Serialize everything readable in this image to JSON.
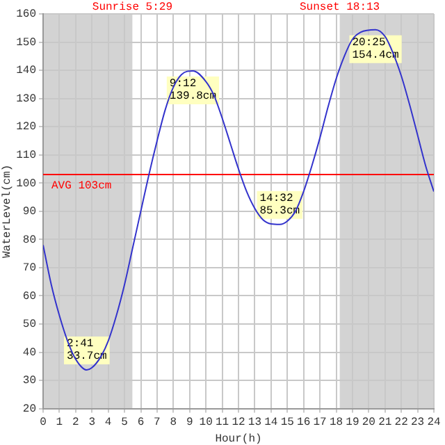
{
  "chart_data": {
    "type": "line",
    "xlabel": "Hour(h)",
    "ylabel": "WaterLevel(cm)",
    "x": [
      0,
      0.5,
      1,
      1.5,
      2,
      2.683,
      3,
      3.5,
      4,
      4.5,
      5,
      5.5,
      6,
      6.5,
      7,
      7.5,
      8,
      8.5,
      9.2,
      10,
      10.5,
      11,
      11.5,
      12,
      12.5,
      13,
      13.5,
      14,
      14.533,
      15,
      15.5,
      16,
      16.5,
      17,
      17.5,
      18,
      18.5,
      19,
      19.5,
      20.417,
      21,
      21.5,
      22,
      22.5,
      23,
      23.5,
      24
    ],
    "series": [
      {
        "color": "#3333cc",
        "values": [
          78,
          64,
          53,
          44,
          37.5,
          33.7,
          34.5,
          38,
          44,
          53,
          64,
          77,
          90,
          103,
          115,
          126,
          134,
          138.5,
          139.8,
          136,
          131,
          123,
          114,
          105,
          97,
          91,
          87,
          85.5,
          85.3,
          86.5,
          90,
          97,
          106,
          116,
          127,
          137,
          145,
          151,
          153.5,
          154.4,
          152,
          146,
          138,
          128,
          117,
          106,
          97
        ]
      }
    ],
    "xlim": [
      0,
      24
    ],
    "xticks": [
      0,
      1,
      2,
      3,
      4,
      5,
      6,
      7,
      8,
      9,
      10,
      11,
      12,
      13,
      14,
      15,
      16,
      17,
      18,
      19,
      20,
      21,
      22,
      23,
      24
    ],
    "ylim": [
      20,
      160
    ],
    "yticks": [
      20,
      30,
      40,
      50,
      60,
      70,
      80,
      90,
      100,
      110,
      120,
      130,
      140,
      150,
      160
    ],
    "grid": true,
    "legend": false,
    "marker": "none",
    "line_style": "solid",
    "ref_lines": [
      {
        "axis": "y",
        "value": 103,
        "label": "AVG 103cm",
        "color": "#ff0000"
      }
    ],
    "bands": [
      {
        "axis": "x",
        "from": 0,
        "to": 5.483,
        "label": "Sunrise 5:29",
        "color": "#d3d3d3"
      },
      {
        "axis": "x",
        "from": 18.217,
        "to": 24,
        "label": "Sunset 18:13",
        "color": "#d3d3d3"
      }
    ],
    "annotations": [
      {
        "text": "2:41\n33.7cm",
        "x": 2.683,
        "y": 33.7
      },
      {
        "text": "9:12\n139.8cm",
        "x": 9.2,
        "y": 139.8
      },
      {
        "text": "14:32\n85.3cm",
        "x": 14.533,
        "y": 85.3
      },
      {
        "text": "20:25\n154.4cm",
        "x": 20.417,
        "y": 154.4
      }
    ]
  }
}
